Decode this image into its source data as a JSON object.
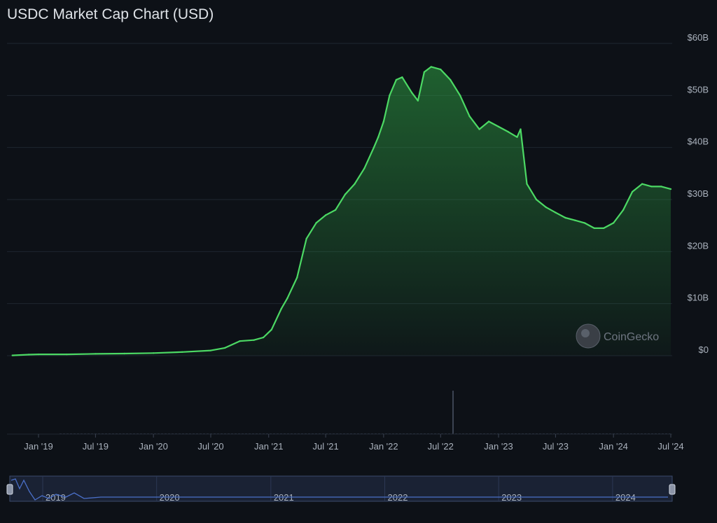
{
  "title": "USDC Market Cap Chart (USD)",
  "watermark": "CoinGecko",
  "colors": {
    "line": "#4cd964",
    "background": "#0d1117",
    "grid": "#1f2630",
    "navigator": "#4a6fc7"
  },
  "chart_data": {
    "type": "area",
    "title": "USDC Market Cap Chart (USD)",
    "x_unit": "date",
    "y_unit": "USD billions",
    "ylim": [
      0,
      60
    ],
    "grid": true,
    "y_ticks": [
      {
        "value": 0,
        "label": "$0"
      },
      {
        "value": 10,
        "label": "$10B"
      },
      {
        "value": 20,
        "label": "$20B"
      },
      {
        "value": 30,
        "label": "$30B"
      },
      {
        "value": 40,
        "label": "$40B"
      },
      {
        "value": 50,
        "label": "$50B"
      },
      {
        "value": 60,
        "label": "$60B"
      }
    ],
    "x_ticks": [
      {
        "date": "2019-01-01",
        "label": "Jan '19"
      },
      {
        "date": "2019-07-01",
        "label": "Jul '19"
      },
      {
        "date": "2020-01-01",
        "label": "Jan '20"
      },
      {
        "date": "2020-07-01",
        "label": "Jul '20"
      },
      {
        "date": "2021-01-01",
        "label": "Jan '21"
      },
      {
        "date": "2021-07-01",
        "label": "Jul '21"
      },
      {
        "date": "2022-01-01",
        "label": "Jan '22"
      },
      {
        "date": "2022-07-01",
        "label": "Jul '22"
      },
      {
        "date": "2023-01-01",
        "label": "Jan '23"
      },
      {
        "date": "2023-07-01",
        "label": "Jul '23"
      },
      {
        "date": "2024-01-01",
        "label": "Jan '24"
      },
      {
        "date": "2024-07-01",
        "label": "Jul '24"
      }
    ],
    "navigator_ticks": [
      {
        "date": "2019-01-01",
        "label": "2019"
      },
      {
        "date": "2020-01-01",
        "label": "2020"
      },
      {
        "date": "2021-01-01",
        "label": "2021"
      },
      {
        "date": "2022-01-01",
        "label": "2022"
      },
      {
        "date": "2023-01-01",
        "label": "2023"
      },
      {
        "date": "2024-01-01",
        "label": "2024"
      }
    ],
    "series": [
      {
        "points": [
          [
            "2018-10-10",
            0.05
          ],
          [
            "2018-12-01",
            0.2
          ],
          [
            "2019-01-01",
            0.25
          ],
          [
            "2019-04-01",
            0.25
          ],
          [
            "2019-07-01",
            0.35
          ],
          [
            "2019-10-01",
            0.4
          ],
          [
            "2020-01-01",
            0.5
          ],
          [
            "2020-04-01",
            0.7
          ],
          [
            "2020-07-01",
            1.0
          ],
          [
            "2020-08-15",
            1.5
          ],
          [
            "2020-10-01",
            2.8
          ],
          [
            "2020-11-15",
            3.0
          ],
          [
            "2020-12-15",
            3.5
          ],
          [
            "2021-01-10",
            5.0
          ],
          [
            "2021-02-10",
            9.0
          ],
          [
            "2021-03-01",
            11.0
          ],
          [
            "2021-04-01",
            15.0
          ],
          [
            "2021-05-01",
            22.5
          ],
          [
            "2021-06-01",
            25.5
          ],
          [
            "2021-07-01",
            27.0
          ],
          [
            "2021-08-01",
            28.0
          ],
          [
            "2021-09-01",
            31.0
          ],
          [
            "2021-10-01",
            33.0
          ],
          [
            "2021-11-01",
            36.0
          ],
          [
            "2021-12-01",
            40.0
          ],
          [
            "2021-12-15",
            42.0
          ],
          [
            "2022-01-01",
            45.0
          ],
          [
            "2022-01-20",
            50.0
          ],
          [
            "2022-02-10",
            53.0
          ],
          [
            "2022-03-01",
            53.5
          ],
          [
            "2022-04-01",
            50.5
          ],
          [
            "2022-04-20",
            49.0
          ],
          [
            "2022-05-10",
            54.5
          ],
          [
            "2022-06-01",
            55.5
          ],
          [
            "2022-07-01",
            55.0
          ],
          [
            "2022-08-01",
            53.0
          ],
          [
            "2022-09-01",
            50.0
          ],
          [
            "2022-10-01",
            46.0
          ],
          [
            "2022-11-01",
            43.5
          ],
          [
            "2022-12-01",
            45.0
          ],
          [
            "2023-01-01",
            44.0
          ],
          [
            "2023-02-01",
            43.0
          ],
          [
            "2023-03-01",
            42.0
          ],
          [
            "2023-03-12",
            43.5
          ],
          [
            "2023-04-01",
            33.0
          ],
          [
            "2023-05-01",
            30.0
          ],
          [
            "2023-06-01",
            28.5
          ],
          [
            "2023-07-01",
            27.5
          ],
          [
            "2023-08-01",
            26.5
          ],
          [
            "2023-09-01",
            26.0
          ],
          [
            "2023-10-01",
            25.5
          ],
          [
            "2023-11-01",
            24.5
          ],
          [
            "2023-12-01",
            24.5
          ],
          [
            "2024-01-01",
            25.5
          ],
          [
            "2024-02-01",
            28.0
          ],
          [
            "2024-03-01",
            31.5
          ],
          [
            "2024-04-01",
            33.0
          ],
          [
            "2024-05-01",
            32.5
          ],
          [
            "2024-06-01",
            32.5
          ],
          [
            "2024-07-01",
            32.0
          ]
        ]
      }
    ]
  }
}
